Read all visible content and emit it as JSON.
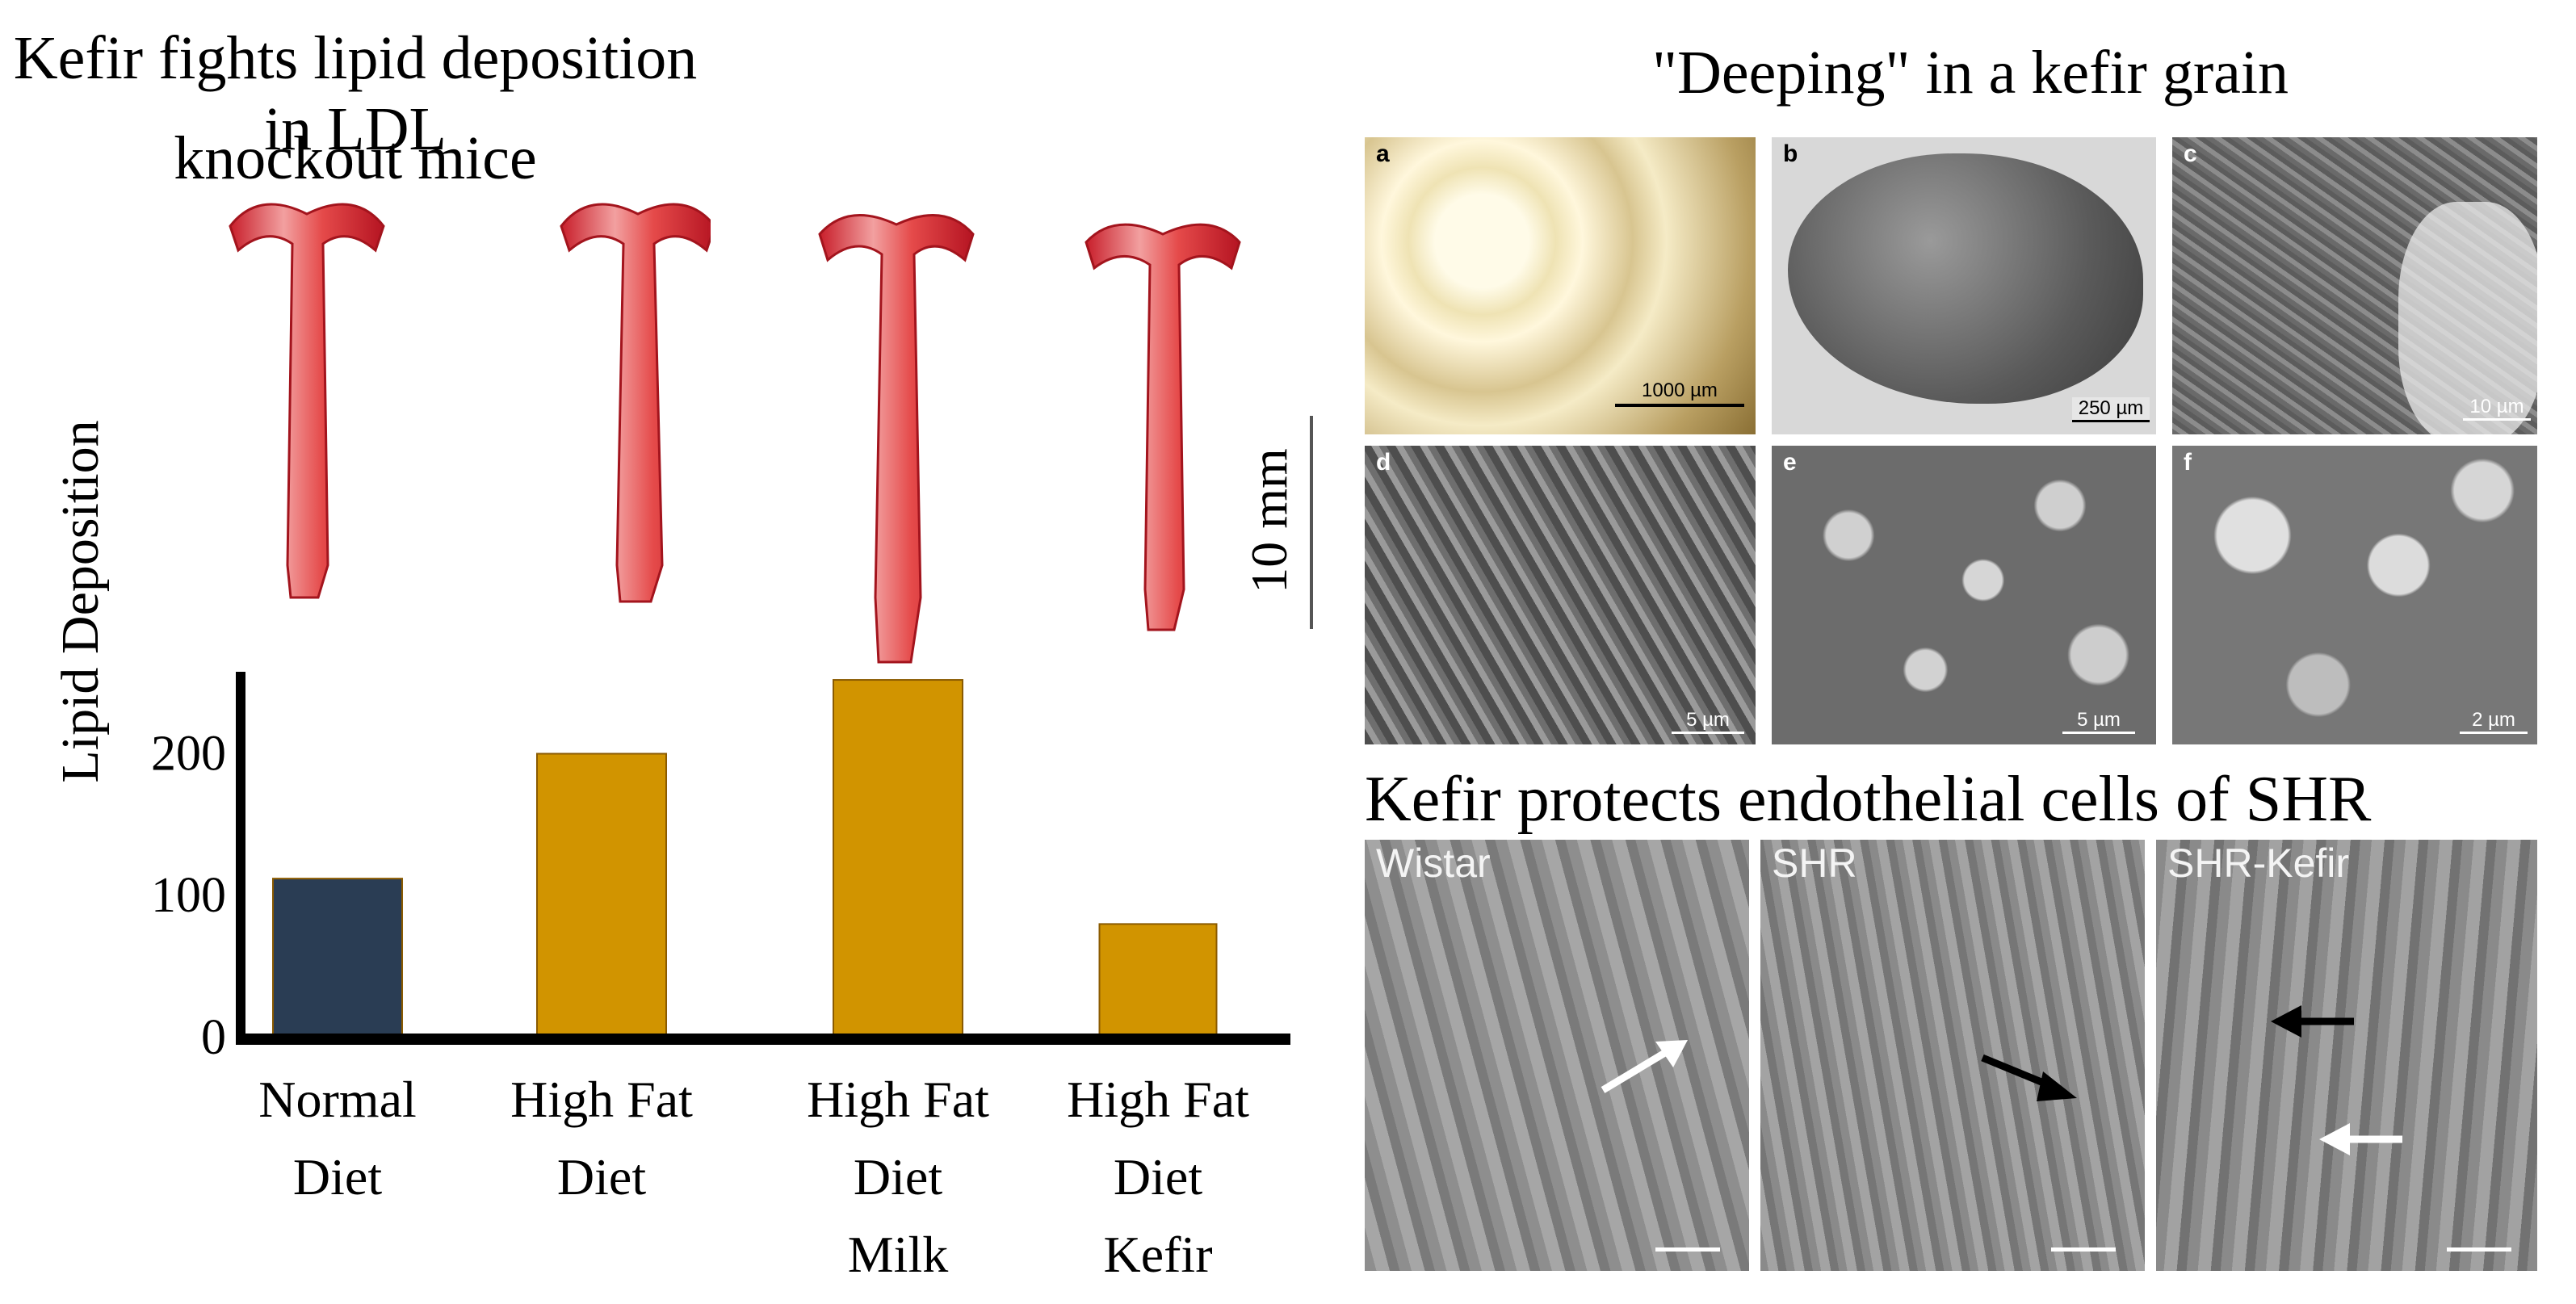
{
  "left": {
    "title": "Kefir fights lipid deposition in LDL knockout mice",
    "title_line1": "Kefir fights lipid deposition in LDL",
    "title_line2": "knockout mice",
    "scale_bar": "10 mm"
  },
  "chart_data": {
    "type": "bar",
    "title": "Kefir fights lipid deposition in LDL knockout mice",
    "xlabel": "",
    "ylabel": "Lipid Deposition",
    "categories": [
      [
        "Normal",
        "Diet"
      ],
      [
        "High Fat",
        "Diet"
      ],
      [
        "High Fat",
        "Diet",
        "Milk"
      ],
      [
        "High Fat",
        "Diet",
        "Kefir"
      ]
    ],
    "values": [
      112,
      200,
      252,
      80
    ],
    "bar_colors": [
      "#2a3d54",
      "#d19400",
      "#d19400",
      "#d19400"
    ],
    "bar_stroke": "#8a5a00",
    "ylim": [
      0,
      260
    ],
    "yticks": [
      0,
      100,
      200
    ],
    "grid": false
  },
  "right": {
    "grain_title": "\"Deeping\" in a kefir grain",
    "grain_panels": [
      {
        "label": "a",
        "scale": "1000 µm"
      },
      {
        "label": "b",
        "scale": "250 µm"
      },
      {
        "label": "c",
        "scale": "10 µm"
      },
      {
        "label": "d",
        "scale": "5 µm"
      },
      {
        "label": "e",
        "scale": "5 µm"
      },
      {
        "label": "f",
        "scale": "2 µm"
      }
    ],
    "endo_title": "Kefir protects endothelial cells of SHR",
    "endo_panels": [
      {
        "label": "Wistar"
      },
      {
        "label": "SHR"
      },
      {
        "label": "SHR-Kefir"
      }
    ]
  }
}
